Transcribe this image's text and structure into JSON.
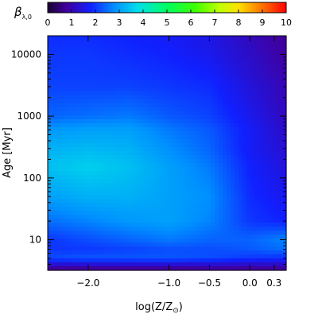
{
  "chart_data": {
    "type": "heatmap",
    "colorbar": {
      "label": "β",
      "label_sub": "λ,0",
      "range": [
        0,
        10
      ],
      "ticks": [
        "0",
        "1",
        "2",
        "3",
        "4",
        "5",
        "6",
        "7",
        "8",
        "9",
        "10"
      ],
      "colormap": "rainbow"
    },
    "x_axis": {
      "label_main": "log(Z/Z",
      "label_sub": "⊙",
      "label_close": ")",
      "range": [
        -2.5,
        0.45
      ],
      "ticks": [
        {
          "value": -2.0,
          "label": "−2.0"
        },
        {
          "value": -1.0,
          "label": "−1.0"
        },
        {
          "value": -0.5,
          "label": "−0.5"
        },
        {
          "value": 0.0,
          "label": "0.0"
        },
        {
          "value": 0.3,
          "label": "0.3"
        }
      ]
    },
    "y_axis": {
      "label": "Age [Myr]",
      "scale": "log",
      "range": [
        3.2,
        20000
      ],
      "ticks": [
        {
          "value": 10,
          "label": "10"
        },
        {
          "value": 100,
          "label": "100"
        },
        {
          "value": 1000,
          "label": "1000"
        },
        {
          "value": 10000,
          "label": "10000"
        }
      ]
    },
    "z_grid": {
      "x": [
        -2.5,
        -2.0,
        -1.5,
        -1.0,
        -0.5,
        0.0,
        0.45
      ],
      "y": [
        3.5,
        5,
        7,
        10,
        20,
        50,
        150,
        300,
        600,
        1000,
        3000,
        10000,
        20000
      ],
      "z": [
        [
          0.8,
          0.8,
          0.8,
          0.8,
          0.8,
          0.8,
          0.8
        ],
        [
          2.2,
          2.3,
          2.3,
          2.3,
          2.2,
          2.0,
          1.9
        ],
        [
          2.0,
          2.0,
          2.1,
          2.2,
          2.2,
          2.3,
          2.5
        ],
        [
          2.0,
          2.2,
          2.4,
          2.6,
          2.4,
          2.4,
          2.7
        ],
        [
          2.5,
          2.7,
          2.9,
          3.0,
          2.7,
          2.0,
          1.8
        ],
        [
          3.0,
          3.2,
          3.2,
          3.0,
          2.8,
          1.9,
          1.6
        ],
        [
          3.4,
          3.6,
          3.4,
          3.0,
          2.6,
          1.8,
          1.4
        ],
        [
          3.2,
          3.3,
          3.2,
          2.8,
          2.4,
          1.7,
          1.3
        ],
        [
          2.9,
          3.0,
          3.0,
          2.6,
          2.3,
          1.7,
          1.2
        ],
        [
          2.4,
          2.5,
          2.6,
          2.3,
          2.1,
          1.6,
          1.1
        ],
        [
          2.1,
          2.1,
          2.1,
          2.0,
          1.9,
          1.4,
          1.0
        ],
        [
          2.0,
          2.0,
          1.9,
          1.8,
          1.6,
          1.2,
          0.8
        ],
        [
          1.9,
          1.9,
          1.8,
          1.7,
          1.5,
          1.1,
          0.7
        ]
      ]
    }
  }
}
